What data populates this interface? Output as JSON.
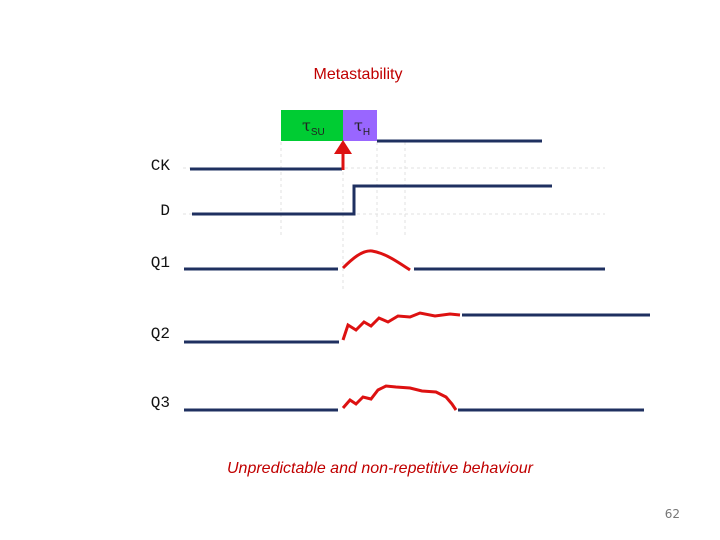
{
  "title": "Metastability",
  "timing_boxes": {
    "setup": {
      "symbol": "τ",
      "sub": "SU"
    },
    "hold": {
      "symbol": "τ",
      "sub": "H"
    }
  },
  "signals": [
    "CK",
    "D",
    "Q1",
    "Q2",
    "Q3"
  ],
  "caption": "Unpredictable and non-repetitive behaviour",
  "page_number": "62",
  "colors": {
    "title": "#c00000",
    "signal_line": "#1f3060",
    "metastable": "#dd1111",
    "setup_box": "#00cc33",
    "hold_box": "#9966ff"
  }
}
